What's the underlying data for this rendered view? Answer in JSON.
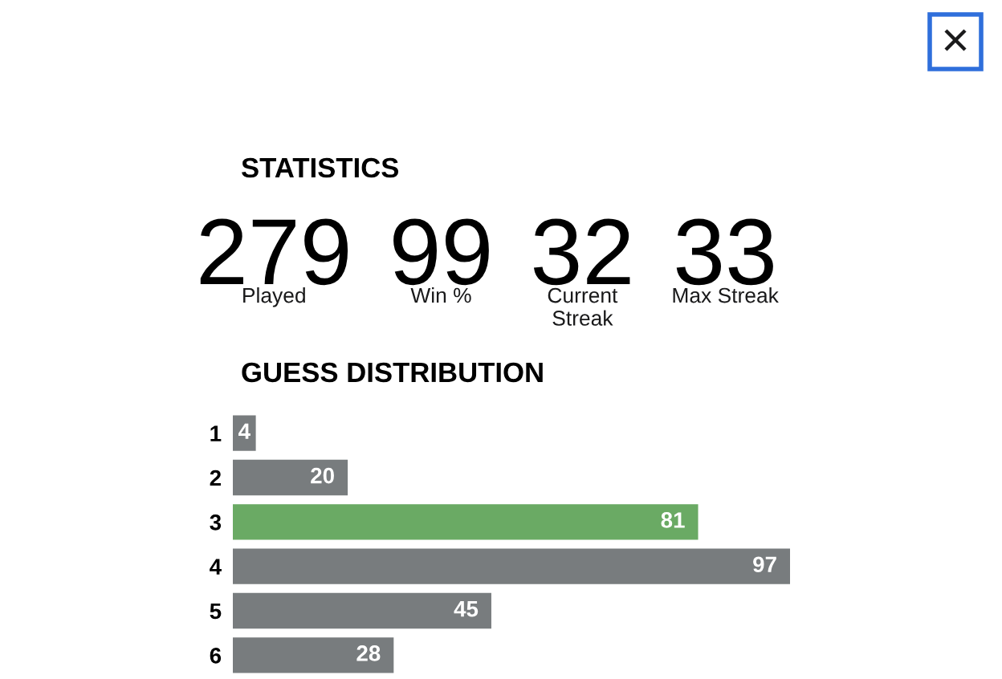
{
  "chart_data": [
    {
      "type": "other",
      "title": "STATISTICS",
      "categories": [
        "Played",
        "Win %",
        "Current Streak",
        "Max Streak"
      ],
      "values": [
        279,
        99,
        32,
        33
      ],
      "data_labels": true
    },
    {
      "type": "bar",
      "title": "GUESS DISTRIBUTION",
      "orientation": "horizontal",
      "categories": [
        "1",
        "2",
        "3",
        "4",
        "5",
        "6"
      ],
      "values": [
        4,
        20,
        81,
        97,
        45,
        28
      ],
      "colors": [
        "#787c7e",
        "#787c7e",
        "#6aaa64",
        "#787c7e",
        "#787c7e",
        "#787c7e"
      ],
      "data_labels": true,
      "tick_labels": "y"
    }
  ]
}
